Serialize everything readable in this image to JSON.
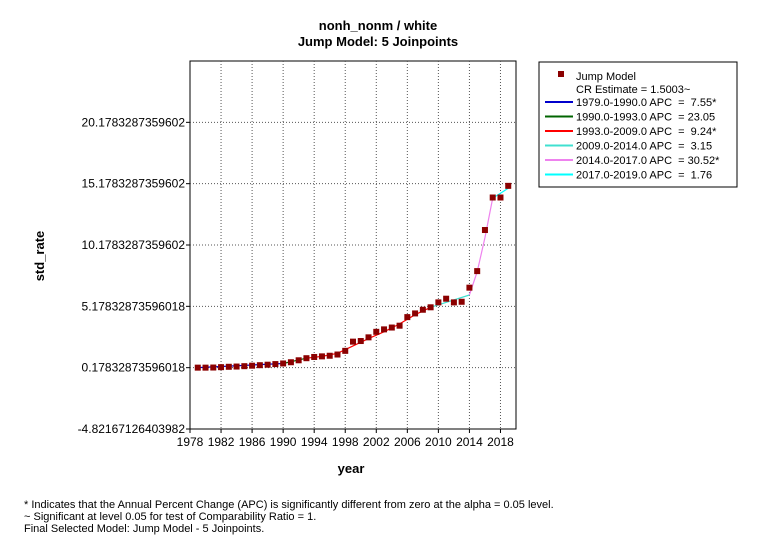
{
  "chart_data": {
    "type": "line",
    "title": "nonh_nonm / white",
    "subtitle": "Jump Model: 5 Joinpoints",
    "xlabel": "year",
    "ylabel": "std_rate",
    "xlim": [
      1978,
      2020
    ],
    "ylim": [
      -4.82167126403982,
      25.1783287359602
    ],
    "x_ticks": [
      1978,
      1982,
      1986,
      1990,
      1994,
      1998,
      2002,
      2006,
      2010,
      2014,
      2018
    ],
    "x_tick_labels": [
      "1978",
      "1982",
      "1986",
      "1990",
      "1994",
      "1998",
      "2002",
      "2006",
      "2010",
      "2014",
      "2018"
    ],
    "y_ticks": [
      -4.82167126403982,
      0.17832873596018,
      5.17832873596018,
      10.1783287359602,
      15.1783287359602,
      20.1783287359602
    ],
    "y_tick_labels": [
      "-4.82167126403982",
      "0.17832873596018",
      "5.17832873596018",
      "10.1783287359602",
      "15.1783287359602",
      "20.1783287359602"
    ],
    "grid": true,
    "legend_position": "right",
    "observed": {
      "name": "Jump Model",
      "color": "#8b0000",
      "x": [
        1979,
        1980,
        1981,
        1982,
        1983,
        1984,
        1985,
        1986,
        1987,
        1988,
        1989,
        1990,
        1991,
        1992,
        1993,
        1994,
        1995,
        1996,
        1997,
        1998,
        1999,
        2000,
        2001,
        2002,
        2003,
        2004,
        2005,
        2006,
        2007,
        2008,
        2009,
        2010,
        2011,
        2012,
        2013,
        2014,
        2015,
        2016,
        2017,
        2018,
        2019
      ],
      "y": [
        0.18,
        0.18,
        0.19,
        0.22,
        0.25,
        0.27,
        0.3,
        0.34,
        0.38,
        0.42,
        0.47,
        0.52,
        0.62,
        0.78,
        0.95,
        1.05,
        1.1,
        1.15,
        1.25,
        1.55,
        2.3,
        2.35,
        2.65,
        3.1,
        3.3,
        3.45,
        3.6,
        4.3,
        4.6,
        4.9,
        5.1,
        5.5,
        5.8,
        5.5,
        5.55,
        6.7,
        8.05,
        11.4,
        14.05,
        14.05,
        15.0
      ]
    },
    "legend_note": "CR Estimate = 1.5003~",
    "series": [
      {
        "name": "1979.0-1990.0 APC  =  7.55*",
        "color": "#0000cc",
        "x": [
          1979,
          1990
        ],
        "y": [
          0.18,
          0.52
        ]
      },
      {
        "name": "1990.0-1993.0 APC  = 23.05",
        "color": "#006400",
        "x": [
          1990,
          1993
        ],
        "y": [
          0.52,
          0.95
        ]
      },
      {
        "name": "1993.0-2009.0 APC  =  9.24*",
        "color": "#ff0000",
        "x": [
          1993,
          1995,
          1997,
          1999,
          2001,
          2003,
          2005,
          2007,
          2009
        ],
        "y": [
          0.95,
          1.1,
          1.35,
          1.95,
          2.55,
          3.1,
          3.75,
          4.5,
          5.1
        ]
      },
      {
        "name": "2009.0-2014.0 APC  =  3.15",
        "color": "#40e0d0",
        "x": [
          2009,
          2014
        ],
        "y": [
          5.1,
          6.1
        ]
      },
      {
        "name": "2014.0-2017.0 APC  = 30.52*",
        "color": "#ee82ee",
        "x": [
          2014,
          2015,
          2016,
          2017
        ],
        "y": [
          6.1,
          8.0,
          10.8,
          14.0
        ]
      },
      {
        "name": "2017.0-2019.0 APC  =  1.76",
        "color": "#00ffff",
        "x": [
          2017,
          2018,
          2019
        ],
        "y": [
          14.0,
          14.4,
          14.8
        ]
      }
    ]
  },
  "footnotes": {
    "line1": "* Indicates that the Annual Percent Change (APC) is significantly different from zero at the alpha = 0.05 level.",
    "line2": "~ Significant at level 0.05 for test of Comparability Ratio = 1.",
    "line3": "Final Selected Model: Jump Model - 5 Joinpoints."
  }
}
